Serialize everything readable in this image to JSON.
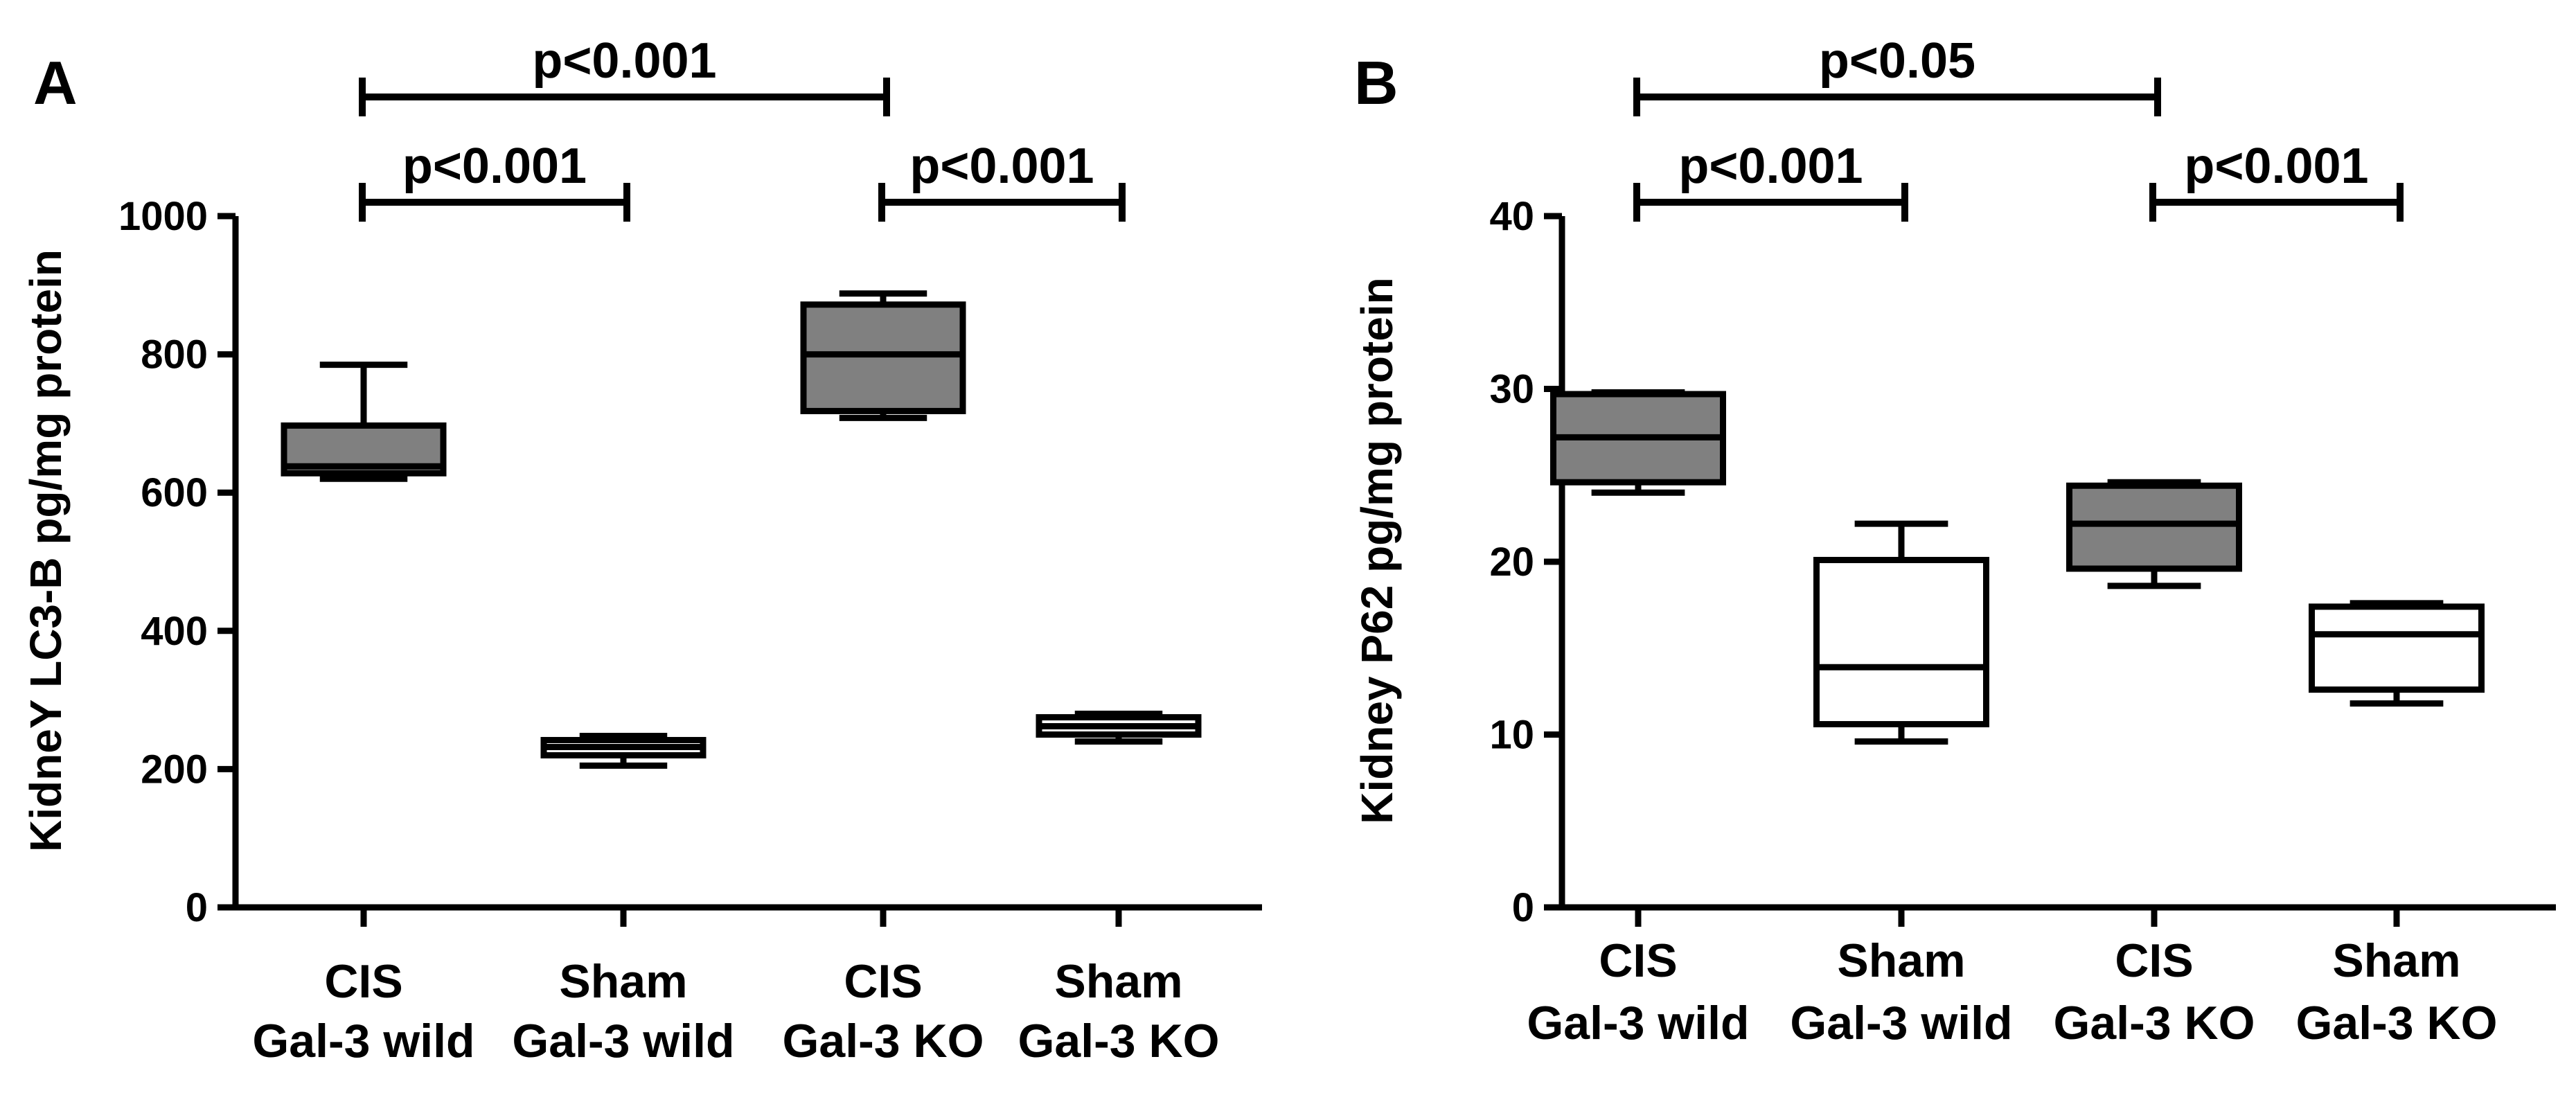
{
  "chart_data": [
    {
      "panel": "A",
      "type": "box",
      "ylabel": "KidneY LC3-B pg/mg protein",
      "ylim": [
        0,
        1000
      ],
      "yticks": [
        0,
        200,
        400,
        600,
        800,
        1000
      ],
      "categories": [
        {
          "line1": "CIS",
          "line2": "Gal-3 wild"
        },
        {
          "line1": "Sham",
          "line2": "Gal-3 wild"
        },
        {
          "line1": "CIS",
          "line2": "Gal-3 KO"
        },
        {
          "line1": "Sham",
          "line2": "Gal-3 KO"
        }
      ],
      "boxes": [
        {
          "min": 620,
          "q1": 628,
          "median": 638,
          "q3": 697,
          "max": 785,
          "fill": "#808080"
        },
        {
          "min": 205,
          "q1": 220,
          "median": 232,
          "q3": 242,
          "max": 248,
          "fill": "#ffffff"
        },
        {
          "min": 708,
          "q1": 718,
          "median": 800,
          "q3": 872,
          "max": 888,
          "fill": "#808080"
        },
        {
          "min": 240,
          "q1": 250,
          "median": 262,
          "q3": 275,
          "max": 280,
          "fill": "#ffffff"
        }
      ],
      "comparisons": [
        {
          "from": 0,
          "to": 2,
          "level": 2,
          "label": "p<0.001"
        },
        {
          "from": 0,
          "to": 1,
          "level": 1,
          "label": "p<0.001"
        },
        {
          "from": 2,
          "to": 3,
          "level": 1,
          "label": "p<0.001"
        }
      ]
    },
    {
      "panel": "B",
      "type": "box",
      "ylabel": "Kidney P62 pg/mg protein",
      "ylim": [
        0,
        40
      ],
      "yticks": [
        0,
        10,
        20,
        30,
        40
      ],
      "categories": [
        {
          "line1": "CIS",
          "line2": "Gal-3 wild"
        },
        {
          "line1": "Sham",
          "line2": "Gal-3 wild"
        },
        {
          "line1": "CIS",
          "line2": "Gal-3 KO"
        },
        {
          "line1": "Sham",
          "line2": "Gal-3 KO"
        }
      ],
      "boxes": [
        {
          "min": 24.0,
          "q1": 24.6,
          "median": 27.2,
          "q3": 29.7,
          "max": 29.8,
          "fill": "#808080"
        },
        {
          "min": 9.6,
          "q1": 10.6,
          "median": 13.9,
          "q3": 20.1,
          "max": 22.2,
          "fill": "#ffffff"
        },
        {
          "min": 18.6,
          "q1": 19.6,
          "median": 22.2,
          "q3": 24.4,
          "max": 24.6,
          "fill": "#808080"
        },
        {
          "min": 11.8,
          "q1": 12.6,
          "median": 15.8,
          "q3": 17.4,
          "max": 17.6,
          "fill": "#ffffff"
        }
      ],
      "comparisons": [
        {
          "from": 0,
          "to": 2,
          "level": 2,
          "label": "p<0.05"
        },
        {
          "from": 0,
          "to": 1,
          "level": 1,
          "label": "p<0.001"
        },
        {
          "from": 2,
          "to": 3,
          "level": 1,
          "label": "p<0.001"
        }
      ]
    }
  ]
}
